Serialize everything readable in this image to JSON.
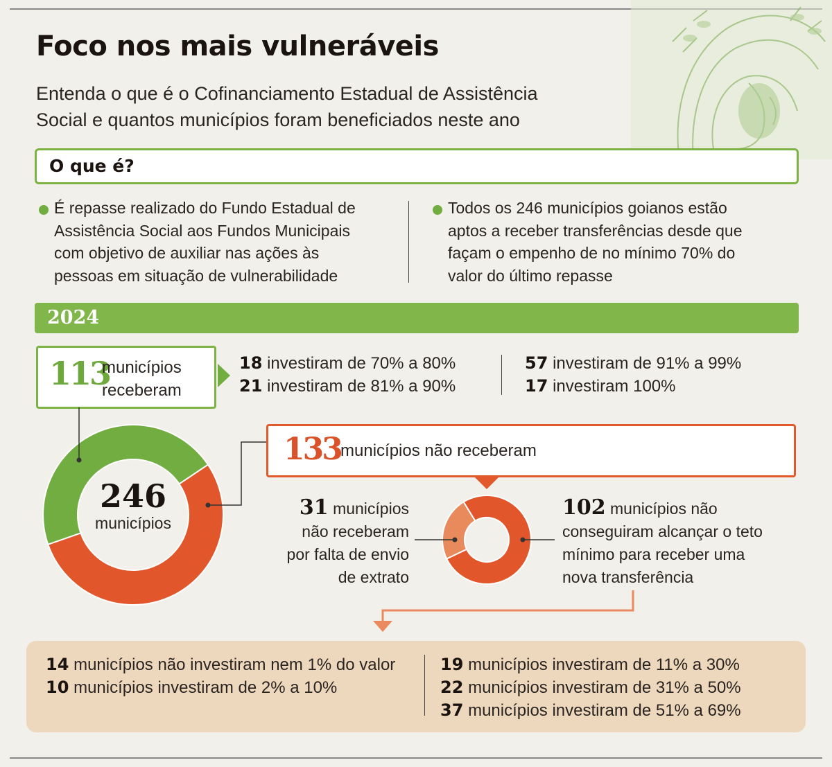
{
  "header": {
    "title": "Foco nos mais vulneráveis",
    "subtitle_line1": "Entenda o que é o Cofinanciamento Estadual de Assistência",
    "subtitle_line2": "Social e quantos municípios foram beneficiados neste ano"
  },
  "what": {
    "heading": "O que é?",
    "left": [
      "É repasse realizado do Fundo Estadual de",
      "Assistência Social aos Fundos Municipais",
      "com objetivo de auxiliar nas ações às",
      "pessoas em situação de vulnerabilidade"
    ],
    "right": [
      "Todos os 246 municípios goianos estão",
      "aptos a receber transferências desde que",
      "façam o empenho de no mínimo 70% do",
      "valor do último repasse"
    ]
  },
  "year": "2024",
  "received": {
    "count": "113",
    "label_line1": "municípios",
    "label_line2": "receberam",
    "stats": [
      {
        "n": "18",
        "text": "investiram de 70% a 80%"
      },
      {
        "n": "21",
        "text": "investiram de 81% a 90%"
      },
      {
        "n": "57",
        "text": "investiram de 91% a 99%"
      },
      {
        "n": "17",
        "text": "investiram 100%"
      }
    ]
  },
  "total": {
    "count": "246",
    "label": "municípios"
  },
  "not_received": {
    "count": "133",
    "label": "municípios não receberam",
    "left": {
      "n": "31",
      "lines": [
        "municípios",
        "não receberam",
        "por falta de envio",
        "de extrato"
      ]
    },
    "right": {
      "n": "102",
      "lines": [
        "municípios não",
        "conseguiram alcançar o teto",
        "mínimo para receber uma",
        "nova transferência"
      ]
    }
  },
  "bottom": {
    "left": [
      {
        "n": "14",
        "text": "municípios não investiram nem 1% do valor"
      },
      {
        "n": "10",
        "text": "municípios investiram de 2% a 10%"
      }
    ],
    "right": [
      {
        "n": "19",
        "text": "municípios investiram de 11% a 30%"
      },
      {
        "n": "22",
        "text": "municípios investiram de 31% a 50%"
      },
      {
        "n": "37",
        "text": "municípios investiram de 51% a 69%"
      }
    ]
  },
  "colors": {
    "green": "#72ad42",
    "orange": "#e2562b",
    "light_orange": "#e88a5c",
    "beige": "#eed8bd"
  },
  "donut_main": {
    "received": 113,
    "not_received": 133
  },
  "donut_small": {
    "missing_statement": 31,
    "below_minimum": 102
  }
}
